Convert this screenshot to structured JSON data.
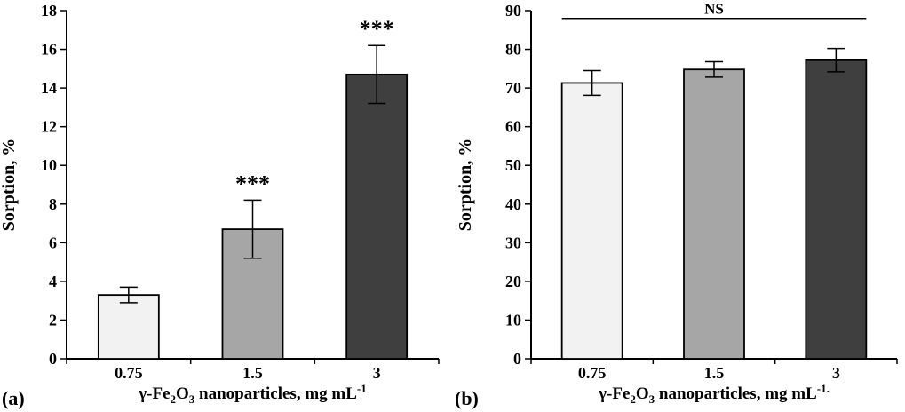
{
  "figure": {
    "background_color": "#ffffff",
    "panel_labels": [
      "(a)",
      "(b)"
    ]
  },
  "chart_data": [
    {
      "type": "bar",
      "panel_label": "(a)",
      "title": "",
      "ylabel": "Sorption, %",
      "xlabel": "γ-Fe₂O₃ nanoparticles, mg mL⁻¹",
      "xlabel_parts": [
        {
          "text": "γ-Fe"
        },
        {
          "text": "2",
          "script": "sub"
        },
        {
          "text": "O"
        },
        {
          "text": "3",
          "script": "sub"
        },
        {
          "text": " nanoparticles, mg mL"
        },
        {
          "text": "-1",
          "script": "sup"
        }
      ],
      "categories": [
        "0.75",
        "1.5",
        "3"
      ],
      "values": [
        3.3,
        6.7,
        14.7
      ],
      "error_bars": [
        0.4,
        1.5,
        1.5
      ],
      "significance_labels": [
        "",
        "***",
        "***"
      ],
      "ns_bracket": null,
      "ylim": [
        0,
        18
      ],
      "yticks": [
        0,
        2,
        4,
        6,
        8,
        10,
        12,
        14,
        16,
        18
      ],
      "bar_colors": [
        "#f2f2f2",
        "#a6a6a6",
        "#3f3f3f"
      ],
      "bar_border_color": "#000000",
      "axis_color": "#000000",
      "grid": false,
      "legend": null
    },
    {
      "type": "bar",
      "panel_label": "(b)",
      "title": "",
      "ylabel": "Sorption, %",
      "xlabel": "γ-Fe₂O₃ nanoparticles, mg mL⁻¹.",
      "xlabel_parts": [
        {
          "text": "γ-Fe"
        },
        {
          "text": "2",
          "script": "sub"
        },
        {
          "text": "O"
        },
        {
          "text": "3",
          "script": "sub"
        },
        {
          "text": " nanoparticles, mg mL"
        },
        {
          "text": "-1.",
          "script": "sup"
        }
      ],
      "categories": [
        "0.75",
        "1.5",
        "3"
      ],
      "values": [
        71.3,
        74.8,
        77.2
      ],
      "error_bars": [
        3.2,
        2.0,
        3.0
      ],
      "significance_labels": [
        "",
        "",
        ""
      ],
      "ns_bracket": {
        "text": "NS",
        "y_value": 88,
        "from_bar": 0,
        "to_bar": 2
      },
      "ylim": [
        0,
        90
      ],
      "yticks": [
        0,
        10,
        20,
        30,
        40,
        50,
        60,
        70,
        80,
        90
      ],
      "bar_colors": [
        "#f2f2f2",
        "#a6a6a6",
        "#3f3f3f"
      ],
      "bar_border_color": "#000000",
      "axis_color": "#000000",
      "grid": false,
      "legend": null
    }
  ]
}
